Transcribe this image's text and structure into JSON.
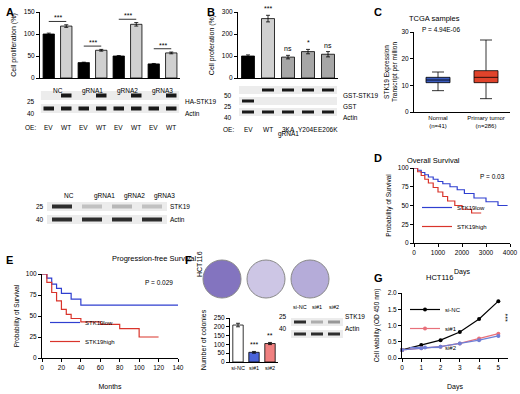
{
  "chart_data": [
    {
      "panel": "A",
      "type": "bar",
      "ylabel": "Cell proliferation (%)",
      "category_prefix": "OE:",
      "categories": [
        "EV",
        "WT",
        "EV",
        "WT",
        "EV",
        "WT",
        "EV",
        "WT"
      ],
      "groups": [
        {
          "label": "NC",
          "between": [
            0,
            1
          ]
        },
        {
          "label": "gRNA1",
          "between": [
            2,
            3
          ]
        },
        {
          "label": "gRNA2",
          "between": [
            4,
            5
          ]
        },
        {
          "label": "gRNA3",
          "between": [
            6,
            7
          ]
        }
      ],
      "values": [
        100,
        118,
        35,
        63,
        50,
        122,
        32,
        57
      ],
      "errors": [
        2,
        3,
        1,
        2,
        1,
        4,
        1,
        2
      ],
      "colors": [
        "#000000",
        "#d0d0d0",
        "#000000",
        "#d0d0d0",
        "#000000",
        "#d0d0d0",
        "#000000",
        "#d0d0d0"
      ],
      "ylim": [
        0,
        150
      ],
      "yticks": [
        0,
        50,
        100,
        150
      ],
      "significance": [
        {
          "between": [
            0,
            1
          ],
          "text": "***"
        },
        {
          "between": [
            2,
            3
          ],
          "text": "***"
        },
        {
          "between": [
            4,
            5
          ],
          "text": "***"
        },
        {
          "between": [
            6,
            7
          ],
          "text": "***"
        }
      ],
      "blot": {
        "rows": [
          {
            "label": "HA-STK19",
            "mw": "25",
            "bands": [
              0,
              1,
              0,
              1,
              0,
              1,
              0,
              1
            ]
          },
          {
            "label": "Actin",
            "mw": "40",
            "bands": [
              1,
              1,
              1,
              1,
              1,
              1,
              1,
              1
            ]
          }
        ]
      },
      "blot2": {
        "lanes": [
          "NC",
          "gRNA1",
          "gRNA2",
          "gRNA3"
        ],
        "rows": [
          {
            "label": "STK19",
            "mw": "25",
            "bands": [
              0.9,
              0.2,
              0.25,
              0.2
            ]
          },
          {
            "label": "Actin",
            "mw": "40",
            "bands": [
              0.9,
              0.9,
              0.9,
              0.9
            ]
          }
        ]
      }
    },
    {
      "panel": "B",
      "type": "bar",
      "ylabel": "Cell proferation (%)",
      "category_prefix": "OE:",
      "categories": [
        "EV",
        "WT",
        "3KA",
        "Y204E",
        "E206K"
      ],
      "group": "gRNA1",
      "values": [
        100,
        270,
        95,
        120,
        108
      ],
      "errors": [
        5,
        15,
        8,
        10,
        12
      ],
      "colors": [
        "#000000",
        "#d0d0d0",
        "#a6a6a6",
        "#a6a6a6",
        "#a6a6a6"
      ],
      "ylim": [
        0,
        300
      ],
      "yticks": [
        0,
        100,
        200,
        300
      ],
      "significance": [
        null,
        "***",
        "ns",
        "*",
        "ns"
      ],
      "blot": {
        "rows": [
          {
            "label": "GST-STK19",
            "mw": "50",
            "bands": [
              0,
              1,
              1,
              1,
              1
            ]
          },
          {
            "label": "GST",
            "mw": "25",
            "bands": [
              1,
              0,
              0,
              0,
              0
            ]
          },
          {
            "label": "Actin",
            "mw": "40",
            "bands": [
              1,
              1,
              1,
              1,
              1
            ]
          }
        ]
      }
    },
    {
      "panel": "C",
      "type": "box",
      "title": "TCGA samples",
      "annotation": "P = 4.94E-06",
      "ylabel": [
        "STK19 Expression",
        "Transcript per million"
      ],
      "categories": [
        "Normal (n=41)",
        "Primary tumor (n=286)"
      ],
      "boxes": [
        {
          "lowerfence": 8,
          "q1": 11,
          "median": 12,
          "q3": 13,
          "upperfence": 15
        },
        {
          "lowerfence": 5,
          "q1": 11,
          "median": 13,
          "q3": 15.5,
          "upperfence": 27
        }
      ],
      "colors": [
        "#3a5bbf",
        "#e0432b"
      ],
      "ylim": [
        0,
        30
      ],
      "yticks": [
        0,
        10,
        20,
        30
      ]
    },
    {
      "panel": "D",
      "type": "line",
      "title": "Overall Survival",
      "annotation": "P = 0.03",
      "xlabel": "Days",
      "ylabel": "Probability of Survival",
      "line_style": "step",
      "legend": "lower left",
      "series": [
        {
          "name": "STK19low",
          "color": "#2f3fd0",
          "x": [
            0,
            150,
            300,
            450,
            600,
            800,
            1000,
            1200,
            1500,
            1800,
            2100,
            2500,
            3000,
            3500,
            3900
          ],
          "values": [
            100,
            97,
            94,
            91,
            88,
            85,
            82,
            79,
            75,
            71,
            66,
            60,
            55,
            50,
            50
          ]
        },
        {
          "name": "STK19high",
          "color": "#d9342b",
          "x": [
            0,
            150,
            300,
            450,
            600,
            800,
            1000,
            1200,
            1400,
            1700,
            2000,
            2400,
            2800
          ],
          "values": [
            100,
            95,
            90,
            85,
            80,
            74,
            68,
            62,
            56,
            50,
            45,
            40,
            40
          ]
        }
      ],
      "xlim": [
        0,
        4000
      ],
      "xticks": [
        0,
        1000,
        2000,
        3000,
        4000
      ],
      "ylim": [
        0,
        100
      ],
      "yticks": [
        0,
        25,
        50,
        75,
        100
      ]
    },
    {
      "panel": "E",
      "type": "line",
      "title": "Progression-free Survival",
      "annotation": "P = 0.029",
      "xlabel": "Months",
      "ylabel": "Probability of Survival",
      "line_style": "step",
      "legend": "lower left",
      "series": [
        {
          "name": "STK19low",
          "color": "#2f3fd0",
          "x": [
            0,
            5,
            10,
            15,
            20,
            30,
            40,
            60,
            80,
            100,
            120,
            140
          ],
          "values": [
            100,
            95,
            88,
            83,
            77,
            70,
            63,
            63,
            63,
            63,
            63,
            63
          ]
        },
        {
          "name": "STK19high",
          "color": "#d9342b",
          "x": [
            0,
            5,
            10,
            15,
            20,
            25,
            30,
            40,
            60,
            80,
            100,
            120
          ],
          "values": [
            100,
            90,
            78,
            68,
            58,
            52,
            47,
            43,
            40,
            35,
            25,
            25
          ]
        }
      ],
      "xlim": [
        0,
        140
      ],
      "xticks": [
        0,
        20,
        40,
        60,
        80,
        100,
        120,
        140
      ],
      "ylim": [
        0,
        100
      ],
      "yticks": [
        0,
        25,
        50,
        75,
        100
      ]
    },
    {
      "panel": "F",
      "type": "bar",
      "cell_line": "HCT116",
      "ylabel": "Number of colonies",
      "categories": [
        "si-NC",
        "si#1",
        "si#2"
      ],
      "values": [
        210,
        55,
        105
      ],
      "errors": [
        10,
        5,
        6
      ],
      "colors": [
        "#ffffff",
        "#4a63d8",
        "#f08080"
      ],
      "ylim": [
        0,
        250
      ],
      "yticks": [
        0,
        50,
        100,
        150,
        200,
        250
      ],
      "significance": [
        null,
        "***",
        "**"
      ],
      "blot": {
        "lanes": [
          "si-NC",
          "si#1",
          "si#2"
        ],
        "rows": [
          {
            "label": "STK19",
            "mw": "25",
            "bands": [
              0.9,
              0.3,
              0.4
            ]
          },
          {
            "label": "Actin",
            "mw": "40",
            "bands": [
              0.9,
              0.9,
              0.9
            ]
          }
        ]
      }
    },
    {
      "panel": "G",
      "type": "line",
      "title": "HCT116",
      "xlabel": "Days",
      "ylabel": "Cell viability (OD 450 nm)",
      "legend": "upper left",
      "x": [
        0,
        1,
        2,
        3,
        4,
        5
      ],
      "series": [
        {
          "name": "si-NC",
          "color": "#000000",
          "marker": "circle",
          "line_style": "solid",
          "values": [
            0.25,
            0.4,
            0.55,
            0.8,
            1.2,
            1.75
          ]
        },
        {
          "name": "si#1",
          "color": "#e8707a",
          "marker": "circle",
          "line_style": "solid",
          "values": [
            0.25,
            0.3,
            0.35,
            0.45,
            0.6,
            0.75
          ]
        },
        {
          "name": "si#2",
          "color": "#6f7fd6",
          "marker": "circle",
          "line_style": "solid",
          "values": [
            0.25,
            0.3,
            0.35,
            0.45,
            0.55,
            0.68
          ]
        }
      ],
      "xlim": [
        0,
        5.5
      ],
      "xticks": [
        0,
        1,
        2,
        3,
        4,
        5
      ],
      "ylim": [
        0,
        2
      ],
      "yticks": [
        {
          "value": 0,
          "label": "0.0"
        },
        {
          "value": 0.5,
          "label": "0.5"
        },
        {
          "value": 1,
          "label": "1.0"
        },
        {
          "value": 1.5,
          "label": "1.5"
        },
        {
          "value": 2,
          "label": "2.0"
        }
      ],
      "significance": {
        "text": "***",
        "x": 5,
        "between": [
          "si-NC",
          "si#1"
        ]
      }
    }
  ]
}
